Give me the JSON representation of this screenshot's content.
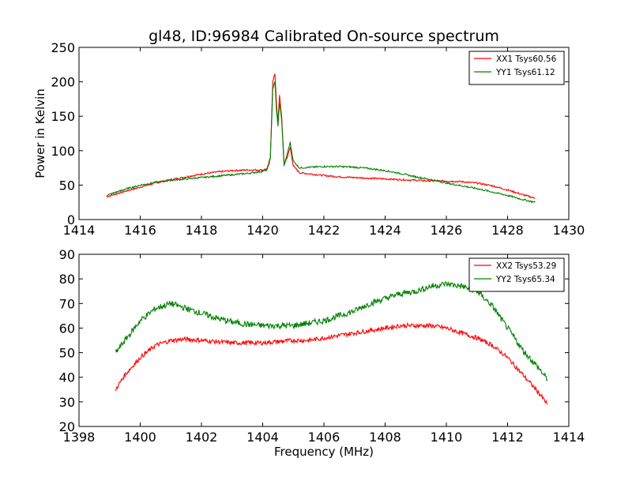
{
  "figure": {
    "title": "gl48, ID:96984 Calibrated On-source spectrum"
  },
  "chart_data": [
    {
      "type": "line",
      "ylabel": "Power in Kelvin",
      "xlabel": "",
      "xlim": [
        1414,
        1430
      ],
      "ylim": [
        0,
        250
      ],
      "xticks": [
        1414,
        1416,
        1418,
        1420,
        1422,
        1424,
        1426,
        1428,
        1430
      ],
      "yticks": [
        0,
        50,
        100,
        150,
        200,
        250
      ],
      "legend_position": "top-right",
      "series": [
        {
          "name": "XX1 Tsys60.56",
          "color": "#ff0000",
          "x": [
            1414.9,
            1415.5,
            1416.0,
            1416.5,
            1417.0,
            1417.5,
            1418.0,
            1418.5,
            1419.0,
            1419.5,
            1420.0,
            1420.15,
            1420.25,
            1420.33,
            1420.4,
            1420.45,
            1420.5,
            1420.55,
            1420.62,
            1420.7,
            1420.8,
            1420.9,
            1421.0,
            1421.2,
            1421.6,
            1422.0,
            1422.5,
            1423.0,
            1423.5,
            1424.0,
            1424.5,
            1425.0,
            1425.5,
            1426.0,
            1426.5,
            1427.0,
            1427.5,
            1428.0,
            1428.5,
            1428.9
          ],
          "y": [
            33,
            41,
            47,
            53,
            58,
            62,
            66,
            69,
            71,
            72,
            72,
            74,
            90,
            200,
            212,
            170,
            140,
            180,
            150,
            80,
            90,
            105,
            78,
            68,
            66,
            64,
            62,
            61,
            60,
            59,
            58,
            57,
            56,
            56,
            55,
            53,
            49,
            43,
            36,
            31
          ]
        },
        {
          "name": "YY1 Tsys61.12",
          "color": "#008000",
          "x": [
            1414.9,
            1415.5,
            1416.0,
            1416.5,
            1417.0,
            1417.5,
            1418.0,
            1418.5,
            1419.0,
            1419.5,
            1420.0,
            1420.15,
            1420.25,
            1420.33,
            1420.4,
            1420.45,
            1420.5,
            1420.55,
            1420.62,
            1420.7,
            1420.8,
            1420.9,
            1421.0,
            1421.2,
            1421.6,
            1422.0,
            1422.5,
            1423.0,
            1423.5,
            1424.0,
            1424.5,
            1425.0,
            1425.5,
            1426.0,
            1426.5,
            1427.0,
            1427.5,
            1428.0,
            1428.5,
            1428.9
          ],
          "y": [
            35,
            44,
            50,
            54,
            57,
            59,
            61,
            63,
            65,
            67,
            70,
            72,
            88,
            190,
            200,
            160,
            135,
            170,
            145,
            78,
            95,
            112,
            85,
            75,
            76,
            77,
            77,
            76,
            74,
            71,
            67,
            62,
            58,
            53,
            49,
            45,
            40,
            35,
            29,
            25
          ]
        }
      ]
    },
    {
      "type": "line",
      "ylabel": "",
      "xlabel": "Frequency (MHz)",
      "xlim": [
        1398,
        1414
      ],
      "ylim": [
        20,
        90
      ],
      "xticks": [
        1398,
        1400,
        1402,
        1404,
        1406,
        1408,
        1410,
        1412,
        1414
      ],
      "yticks": [
        20,
        30,
        40,
        50,
        60,
        70,
        80,
        90
      ],
      "legend_position": "top-right",
      "series": [
        {
          "name": "XX2 Tsys53.29",
          "color": "#ff0000",
          "x": [
            1399.2,
            1399.5,
            1400.0,
            1400.5,
            1401.0,
            1401.5,
            1402.0,
            1402.5,
            1403.0,
            1403.5,
            1404.0,
            1404.5,
            1405.0,
            1405.5,
            1406.0,
            1406.5,
            1407.0,
            1407.5,
            1408.0,
            1408.5,
            1409.0,
            1409.5,
            1410.0,
            1410.5,
            1411.0,
            1411.5,
            1412.0,
            1412.5,
            1413.0,
            1413.3
          ],
          "y": [
            35,
            41,
            48,
            53,
            55,
            55.5,
            55,
            54.5,
            54,
            54,
            54,
            54.5,
            55,
            55,
            56,
            57,
            58,
            59,
            60,
            61,
            61,
            61,
            60,
            58,
            56,
            53,
            48,
            41,
            34,
            29
          ]
        },
        {
          "name": "YY2 Tsys65.34",
          "color": "#008000",
          "x": [
            1399.2,
            1399.5,
            1400.0,
            1400.5,
            1401.0,
            1401.5,
            1402.0,
            1402.5,
            1403.0,
            1403.5,
            1404.0,
            1404.5,
            1405.0,
            1405.5,
            1406.0,
            1406.5,
            1407.0,
            1407.5,
            1408.0,
            1408.5,
            1409.0,
            1409.5,
            1410.0,
            1410.5,
            1411.0,
            1411.5,
            1412.0,
            1412.5,
            1413.0,
            1413.3
          ],
          "y": [
            50,
            55,
            63,
            68,
            70,
            68,
            66,
            64,
            62.5,
            61.5,
            61,
            61,
            61,
            62,
            63,
            65,
            67,
            70,
            72,
            74,
            75,
            77,
            78,
            77,
            75,
            69,
            60,
            51,
            44,
            39
          ]
        }
      ]
    }
  ]
}
